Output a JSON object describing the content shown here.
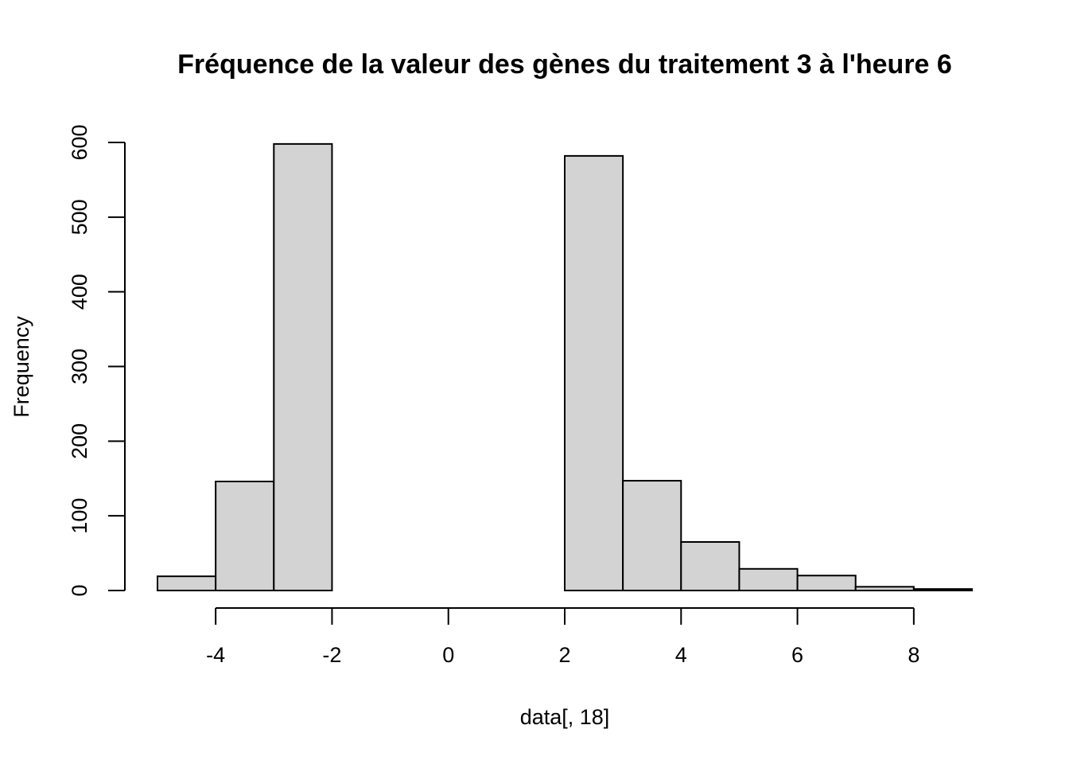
{
  "chart_data": {
    "type": "histogram",
    "title": "Fréquence de la valeur des gènes du traitement 3 à l'heure 6",
    "xlabel": "data[, 18]",
    "ylabel": "Frequency",
    "bin_edges": [
      -5,
      -4,
      -3,
      -2,
      -1,
      0,
      1,
      2,
      3,
      4,
      5,
      6,
      7,
      8,
      9
    ],
    "counts": [
      19,
      146,
      598,
      0,
      0,
      0,
      0,
      582,
      147,
      65,
      29,
      20,
      5,
      2
    ],
    "xlim": [
      -5,
      9
    ],
    "ylim": [
      0,
      600
    ],
    "x_ticks": [
      -4,
      -2,
      0,
      2,
      4,
      6,
      8
    ],
    "x_tick_labels": [
      "-4",
      "-2",
      "0",
      "2",
      "4",
      "6",
      "8"
    ],
    "y_ticks": [
      0,
      100,
      200,
      300,
      400,
      500,
      600
    ],
    "y_tick_labels": [
      "0",
      "100",
      "200",
      "300",
      "400",
      "500",
      "600"
    ],
    "bar_color": "#d3d3d3",
    "bar_edge_color": "#000000",
    "grid": false
  }
}
